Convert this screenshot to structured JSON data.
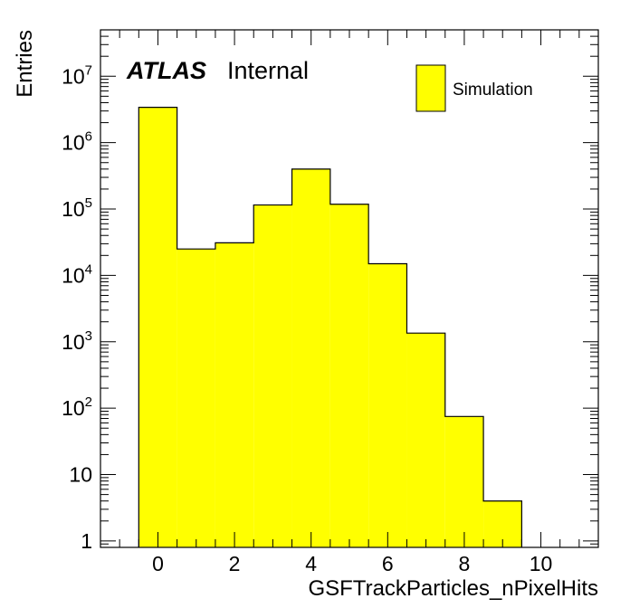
{
  "chart_data": {
    "type": "bar",
    "xlabel": "GSFTrackParticles_nPixelHits",
    "ylabel": "Entries",
    "scale_y": "log",
    "xlim": [
      -1.5,
      11.5
    ],
    "ylim": [
      0.8,
      50000000
    ],
    "x_ticks": [
      {
        "value": 0,
        "label": "0"
      },
      {
        "value": 2,
        "label": "2"
      },
      {
        "value": 4,
        "label": "4"
      },
      {
        "value": 6,
        "label": "6"
      },
      {
        "value": 8,
        "label": "8"
      },
      {
        "value": 10,
        "label": "10"
      }
    ],
    "y_ticks": [
      {
        "value": 1,
        "base": "1",
        "exp": ""
      },
      {
        "value": 10,
        "base": "10",
        "exp": ""
      },
      {
        "value": 100,
        "base": "10",
        "exp": "2"
      },
      {
        "value": 1000,
        "base": "10",
        "exp": "3"
      },
      {
        "value": 10000,
        "base": "10",
        "exp": "4"
      },
      {
        "value": 100000,
        "base": "10",
        "exp": "5"
      },
      {
        "value": 1000000,
        "base": "10",
        "exp": "6"
      },
      {
        "value": 10000000,
        "base": "10",
        "exp": "7"
      }
    ],
    "bin_width": 1,
    "bins": [
      {
        "center": 0,
        "value": 3400000
      },
      {
        "center": 1,
        "value": 25000
      },
      {
        "center": 2,
        "value": 31000
      },
      {
        "center": 3,
        "value": 115000
      },
      {
        "center": 4,
        "value": 400000
      },
      {
        "center": 5,
        "value": 118000
      },
      {
        "center": 6,
        "value": 15000
      },
      {
        "center": 7,
        "value": 1350
      },
      {
        "center": 8,
        "value": 75
      },
      {
        "center": 9,
        "value": 4
      }
    ],
    "series": [
      {
        "name": "Simulation",
        "color": "#ffff00"
      }
    ],
    "legend_position": "top-right",
    "annotation": {
      "bold": "ATLAS",
      "text": "Internal"
    },
    "grid": false
  }
}
